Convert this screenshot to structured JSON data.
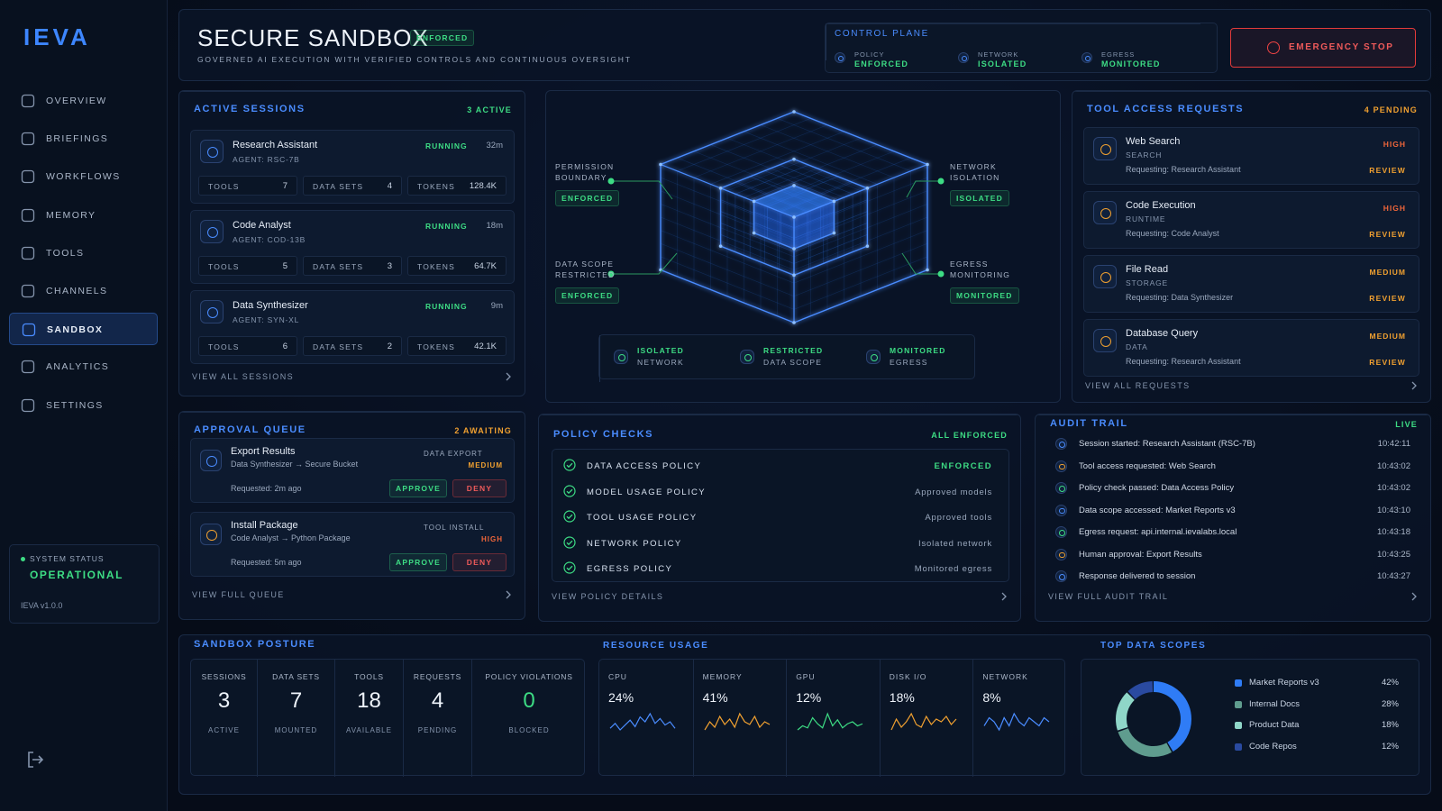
{
  "sidebar": {
    "logo": "IEVA",
    "nav": [
      "OVERVIEW",
      "BRIEFINGS",
      "WORKFLOWS",
      "MEMORY",
      "TOOLS",
      "CHANNELS",
      "SANDBOX",
      "ANALYTICS",
      "SETTINGS"
    ],
    "status": {
      "label": "SYSTEM STATUS",
      "value": "OPERATIONAL"
    },
    "version": "IEVA v1.0.0"
  },
  "header": {
    "title": "SECURE SANDBOX",
    "badge": "ENFORCED",
    "subtitle": "GOVERNED AI EXECUTION WITH VERIFIED CONTROLS AND CONTINUOUS OVERSIGHT",
    "control_plane": {
      "title": "CONTROL PLANE",
      "items": [
        {
          "label": "POLICY",
          "value": "ENFORCED"
        },
        {
          "label": "NETWORK",
          "value": "ISOLATED"
        },
        {
          "label": "EGRESS",
          "value": "MONITORED"
        }
      ]
    },
    "emergency": "EMERGENCY STOP"
  },
  "sessions": {
    "title": "ACTIVE SESSIONS",
    "count": "3 ACTIVE",
    "stat_labels": [
      "TOOLS",
      "DATA SETS",
      "TOKENS"
    ],
    "items": [
      {
        "name": "Research Assistant",
        "agent": "AGENT: RSC-7B",
        "status": "RUNNING",
        "time": "32m",
        "tools": 7,
        "datasets": 4,
        "tokens": "128.4K"
      },
      {
        "name": "Code Analyst",
        "agent": "AGENT: COD-13B",
        "status": "RUNNING",
        "time": "18m",
        "tools": 5,
        "datasets": 3,
        "tokens": "64.7K"
      },
      {
        "name": "Data Synthesizer",
        "agent": "AGENT: SYN-XL",
        "status": "RUNNING",
        "time": "9m",
        "tools": 6,
        "datasets": 2,
        "tokens": "42.1K"
      }
    ],
    "footer": "VIEW ALL SESSIONS"
  },
  "boundary": {
    "labels": [
      {
        "label": "PERMISSION BOUNDARY",
        "badge": "ENFORCED"
      },
      {
        "label": "DATA SCOPE RESTRICTED",
        "badge": "ENFORCED"
      },
      {
        "label": "NETWORK ISOLATION",
        "badge": "ISOLATED"
      },
      {
        "label": "EGRESS MONITORING",
        "badge": "MONITORED"
      }
    ],
    "legend": [
      {
        "title": "ISOLATED",
        "sub": "NETWORK"
      },
      {
        "title": "RESTRICTED",
        "sub": "DATA SCOPE"
      },
      {
        "title": "MONITORED",
        "sub": "EGRESS"
      }
    ]
  },
  "tool_requests": {
    "title": "TOOL ACCESS REQUESTS",
    "count": "4 PENDING",
    "items": [
      {
        "name": "Web Search",
        "type": "SEARCH",
        "requesting": "Requesting: Research Assistant",
        "priority": "HIGH",
        "color": "#f0663a",
        "action": "REVIEW"
      },
      {
        "name": "Code Execution",
        "type": "RUNTIME",
        "requesting": "Requesting: Code Analyst",
        "priority": "HIGH",
        "color": "#f0663a",
        "action": "REVIEW"
      },
      {
        "name": "File Read",
        "type": "STORAGE",
        "requesting": "Requesting: Data Synthesizer",
        "priority": "MEDIUM",
        "color": "#f0a030",
        "action": "REVIEW"
      },
      {
        "name": "Database Query",
        "type": "DATA",
        "requesting": "Requesting: Research Assistant",
        "priority": "MEDIUM",
        "color": "#f0a030",
        "action": "REVIEW"
      }
    ],
    "footer": "VIEW ALL REQUESTS"
  },
  "approval": {
    "title": "APPROVAL QUEUE",
    "count": "2 AWAITING",
    "items": [
      {
        "name": "Export Results",
        "route": "Data Synthesizer → Secure Bucket",
        "type": "DATA EXPORT",
        "priority": "MEDIUM",
        "color": "#f0a030",
        "requested": "Requested: 2m ago",
        "approve": "APPROVE",
        "deny": "DENY"
      },
      {
        "name": "Install Package",
        "route": "Code Analyst → Python Package",
        "type": "TOOL INSTALL",
        "priority": "HIGH",
        "color": "#f0663a",
        "requested": "Requested: 5m ago",
        "approve": "APPROVE",
        "deny": "DENY"
      }
    ],
    "footer": "VIEW FULL QUEUE"
  },
  "policy": {
    "title": "POLICY CHECKS",
    "status": "ALL ENFORCED",
    "items": [
      {
        "name": "DATA ACCESS POLICY",
        "status": "ENFORCED"
      },
      {
        "name": "MODEL USAGE POLICY",
        "status": "Approved models"
      },
      {
        "name": "TOOL USAGE POLICY",
        "status": "Approved tools"
      },
      {
        "name": "NETWORK POLICY",
        "status": "Isolated network"
      },
      {
        "name": "EGRESS POLICY",
        "status": "Monitored egress"
      }
    ],
    "footer": "VIEW POLICY DETAILS"
  },
  "audit": {
    "title": "AUDIT TRAIL",
    "status": "LIVE",
    "items": [
      {
        "text": "Session started: Research Assistant (RSC-7B)",
        "time": "10:42:11",
        "color": "#4a8cff"
      },
      {
        "text": "Tool access requested: Web Search",
        "time": "10:43:02",
        "color": "#f0a030"
      },
      {
        "text": "Policy check passed: Data Access Policy",
        "time": "10:43:02",
        "color": "#3ddc84"
      },
      {
        "text": "Data scope accessed: Market Reports v3",
        "time": "10:43:10",
        "color": "#4a8cff"
      },
      {
        "text": "Egress request: api.internal.ievalabs.local",
        "time": "10:43:18",
        "color": "#3ddc84"
      },
      {
        "text": "Human approval: Export Results",
        "time": "10:43:25",
        "color": "#f0a030"
      },
      {
        "text": "Response delivered to session",
        "time": "10:43:27",
        "color": "#4a8cff"
      }
    ],
    "footer": "VIEW FULL AUDIT TRAIL"
  },
  "posture": {
    "title": "SANDBOX POSTURE",
    "stats": [
      {
        "label": "SESSIONS",
        "value": 3,
        "sub": "ACTIVE"
      },
      {
        "label": "DATA SETS",
        "value": 7,
        "sub": "MOUNTED"
      },
      {
        "label": "TOOLS",
        "value": 18,
        "sub": "AVAILABLE"
      },
      {
        "label": "REQUESTS",
        "value": 4,
        "sub": "PENDING"
      },
      {
        "label": "POLICY VIOLATIONS",
        "value": 0,
        "sub": "BLOCKED"
      }
    ]
  },
  "resources": {
    "title": "RESOURCE USAGE",
    "items": [
      {
        "name": "CPU",
        "label": "24%",
        "color": "#4a8cff",
        "trend": [
          20,
          23,
          19,
          22,
          25,
          21,
          27,
          24,
          29,
          23,
          26,
          22,
          24,
          20
        ]
      },
      {
        "name": "MEMORY",
        "label": "41%",
        "color": "#f0a030",
        "trend": [
          38,
          41,
          39,
          43,
          40,
          42,
          39,
          44,
          41,
          40,
          43,
          39,
          41,
          40
        ]
      },
      {
        "name": "GPU",
        "label": "12%",
        "color": "#3ddc84",
        "trend": [
          8,
          10,
          9,
          14,
          11,
          9,
          16,
          10,
          13,
          9,
          11,
          12,
          10,
          11
        ]
      },
      {
        "name": "DISK I/O",
        "label": "18%",
        "color": "#f0a030",
        "trend": [
          15,
          19,
          16,
          18,
          21,
          17,
          16,
          20,
          17,
          19,
          18,
          20,
          17,
          19
        ]
      },
      {
        "name": "NETWORK",
        "label": "8%",
        "color": "#4a8cff",
        "trend": [
          7,
          9,
          8,
          6,
          9,
          7,
          10,
          8,
          7,
          9,
          8,
          7,
          9,
          8
        ]
      }
    ]
  },
  "data_scopes": {
    "type": "pie",
    "title": "TOP DATA SCOPES",
    "categories": [
      "Market Reports v3",
      "Internal Docs",
      "Product Data",
      "Code Repos"
    ],
    "values": [
      42,
      28,
      18,
      12
    ],
    "value_labels": [
      "42%",
      "28%",
      "18%",
      "12%"
    ],
    "colors": [
      "#2f7cf6",
      "#5f9c8e",
      "#8fd6c8",
      "#2a4aa0"
    ]
  }
}
